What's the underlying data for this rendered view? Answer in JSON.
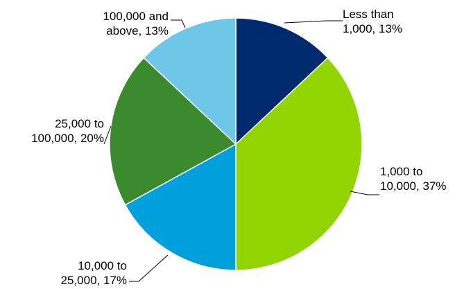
{
  "chart_data": {
    "type": "pie",
    "slices": [
      {
        "label": "Less than 1,000",
        "value": 13,
        "label_lines": [
          "Less than",
          "1,000, 13%"
        ],
        "color": "#002a6e"
      },
      {
        "label": "1,000 to 10,000",
        "value": 37,
        "label_lines": [
          "1,000 to",
          "10,000, 37%"
        ],
        "color": "#92d400"
      },
      {
        "label": "10,000 to 25,000",
        "value": 17,
        "label_lines": [
          "10,000 to",
          "25,000, 17%"
        ],
        "color": "#00a0dc"
      },
      {
        "label": "25,000 to 100,000",
        "value": 20,
        "label_lines": [
          "25,000 to",
          "100,000, 20%"
        ],
        "color": "#3c8a2e"
      },
      {
        "label": "100,000 and above",
        "value": 13,
        "label_lines": [
          "100,000 and",
          "above, 13%"
        ],
        "color": "#6fc7e7"
      }
    ],
    "start_angle_deg": 0,
    "direction": "clockwise",
    "legend": "none"
  }
}
